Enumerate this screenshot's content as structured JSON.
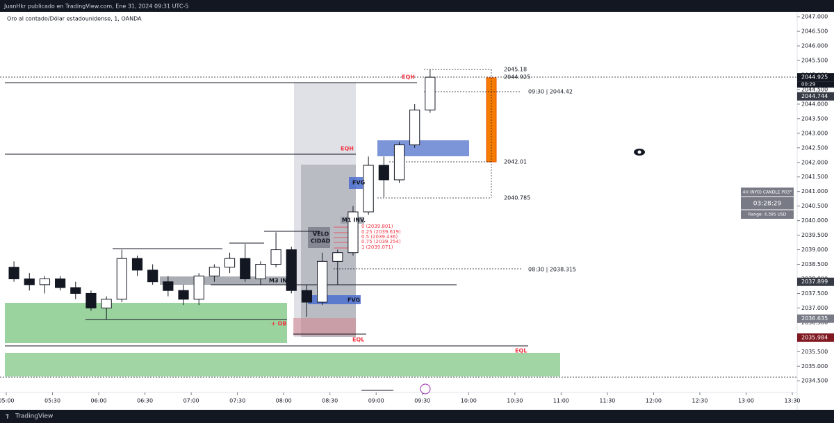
{
  "header": {
    "publisher": "JuanHkr publicado en TradingView.com, Ene 31, 2024 09:31 UTC-5",
    "symbol": "Oro al contado/Dólar estadounidense, 1, OANDA"
  },
  "footer": {
    "brand": "TradingView"
  },
  "chart_data": {
    "type": "candlestick",
    "x": [
      "05:00",
      "05:10",
      "05:20",
      "05:30",
      "05:40",
      "05:50",
      "06:00",
      "06:10",
      "06:20",
      "06:30",
      "06:40",
      "06:50",
      "07:00",
      "07:10",
      "07:20",
      "07:30",
      "07:40",
      "07:50",
      "08:00",
      "08:10",
      "08:20",
      "08:30",
      "08:40",
      "08:50",
      "09:00",
      "09:10",
      "09:20",
      "09:30"
    ],
    "open": [
      2038.4,
      2038.0,
      2037.8,
      2038.0,
      2037.7,
      2037.5,
      2037.0,
      2037.3,
      2038.7,
      2038.3,
      2037.9,
      2037.6,
      2037.3,
      2038.1,
      2038.4,
      2038.7,
      2038.0,
      2038.5,
      2039.0,
      2037.6,
      2037.2,
      2038.6,
      2038.9,
      2040.3,
      2041.9,
      2041.4,
      2042.6,
      2043.8
    ],
    "high": [
      2038.6,
      2038.2,
      2038.1,
      2038.1,
      2037.9,
      2037.6,
      2037.4,
      2039.0,
      2038.8,
      2038.5,
      2038.1,
      2037.8,
      2038.2,
      2038.5,
      2038.9,
      2039.2,
      2038.6,
      2039.6,
      2039.1,
      2037.8,
      2038.9,
      2039.0,
      2040.5,
      2042.2,
      2042.2,
      2042.7,
      2044.0,
      2045.18
    ],
    "low": [
      2037.9,
      2037.6,
      2037.5,
      2037.6,
      2037.3,
      2036.9,
      2036.6,
      2037.2,
      2038.1,
      2037.8,
      2037.4,
      2037.1,
      2037.1,
      2037.9,
      2038.2,
      2037.9,
      2037.8,
      2038.4,
      2037.5,
      2036.7,
      2037.1,
      2037.8,
      2038.8,
      2040.2,
      2040.8,
      2041.3,
      2042.5,
      2043.7
    ],
    "close": [
      2038.0,
      2037.8,
      2038.0,
      2037.7,
      2037.5,
      2037.0,
      2037.3,
      2038.7,
      2038.3,
      2037.9,
      2037.6,
      2037.3,
      2038.1,
      2038.4,
      2038.7,
      2038.0,
      2038.5,
      2039.0,
      2037.6,
      2037.2,
      2038.6,
      2038.9,
      2040.3,
      2041.9,
      2041.4,
      2042.6,
      2043.8,
      2044.925
    ],
    "up_color": "#ffffff",
    "down_color": "#131722",
    "xlim": [
      "05:00",
      "13:30"
    ],
    "xticks": [
      "05:00",
      "05:30",
      "06:00",
      "06:30",
      "07:00",
      "07:30",
      "08:00",
      "08:30",
      "09:00",
      "09:30",
      "10:00",
      "10:30",
      "11:00",
      "11:30",
      "12:00",
      "12:30",
      "13:00",
      "13:30"
    ],
    "ylim": [
      2034.1,
      2047.17
    ],
    "yticks": [
      {
        "value": 2034.5,
        "label": "2034.500"
      },
      {
        "value": 2035,
        "label": "2035.000"
      },
      {
        "value": 2035.5,
        "label": "2035.500"
      },
      {
        "value": 2036,
        "label": "2036.000"
      },
      {
        "value": 2036.5,
        "label": "2036.500"
      },
      {
        "value": 2037,
        "label": "2037.000"
      },
      {
        "value": 2037.5,
        "label": "2037.500"
      },
      {
        "value": 2038,
        "label": "2038.000"
      },
      {
        "value": 2038.5,
        "label": "2038.500"
      },
      {
        "value": 2039,
        "label": "2039.000"
      },
      {
        "value": 2039.5,
        "label": "2039.500"
      },
      {
        "value": 2040,
        "label": "2040.000"
      },
      {
        "value": 2040.5,
        "label": "2040.500"
      },
      {
        "value": 2041,
        "label": "2041.000"
      },
      {
        "value": 2041.5,
        "label": "2041.500"
      },
      {
        "value": 2042,
        "label": "2042.000"
      },
      {
        "value": 2042.5,
        "label": "2042.500"
      },
      {
        "value": 2043,
        "label": "2043.000"
      },
      {
        "value": 2043.5,
        "label": "2043.500"
      },
      {
        "value": 2044,
        "label": "2044.000"
      },
      {
        "value": 2044.5,
        "label": "2044.500"
      },
      {
        "value": 2045,
        "label": "2045.000"
      },
      {
        "value": 2045.5,
        "label": "2045.500"
      },
      {
        "value": 2046,
        "label": "2046.000"
      },
      {
        "value": 2046.5,
        "label": "2046.500"
      },
      {
        "value": 2047,
        "label": "2047.000"
      }
    ],
    "price_labels": [
      {
        "value": 2044.925,
        "color": "#131722"
      },
      {
        "value": 2044.744,
        "color": "#363a45"
      },
      {
        "value": 2037.899,
        "color": "#363a45"
      },
      {
        "value": 2036.635,
        "color": "#787b86"
      },
      {
        "value": 2035.984,
        "color": "#801922"
      }
    ],
    "countdown": "00:29",
    "annotations": {
      "eqh_top": "EQH",
      "eqh_mid": "EQH",
      "eql_mid": "EQL",
      "eql_low": "EQL",
      "ob": "+ OB",
      "high": "2045.18",
      "last": "2044.925",
      "level_0930": "09:30 | 2044.42",
      "level_top": "2042.01",
      "level_bottom": "2040.785",
      "level_0830": "08:30 | 2038.315",
      "m3": "M3 INV.",
      "m1": "M1 INV.",
      "velo": "VELO",
      "cidad": "CIDAD",
      "fvg_low": "FVG",
      "fvg_high": "FVG",
      "fib0": "0 (2039.801)",
      "fib25": "0.25 (2039.619)",
      "fib50": "0.5 (2039.436)",
      "fib75": "0.75 (2039.254)",
      "fib100": "1 (2039.071)"
    },
    "widget": {
      "title": "4H (NYO) CANDLE PO3°",
      "timer": "03:28:29",
      "range": "Range: 4.395 USD"
    }
  }
}
